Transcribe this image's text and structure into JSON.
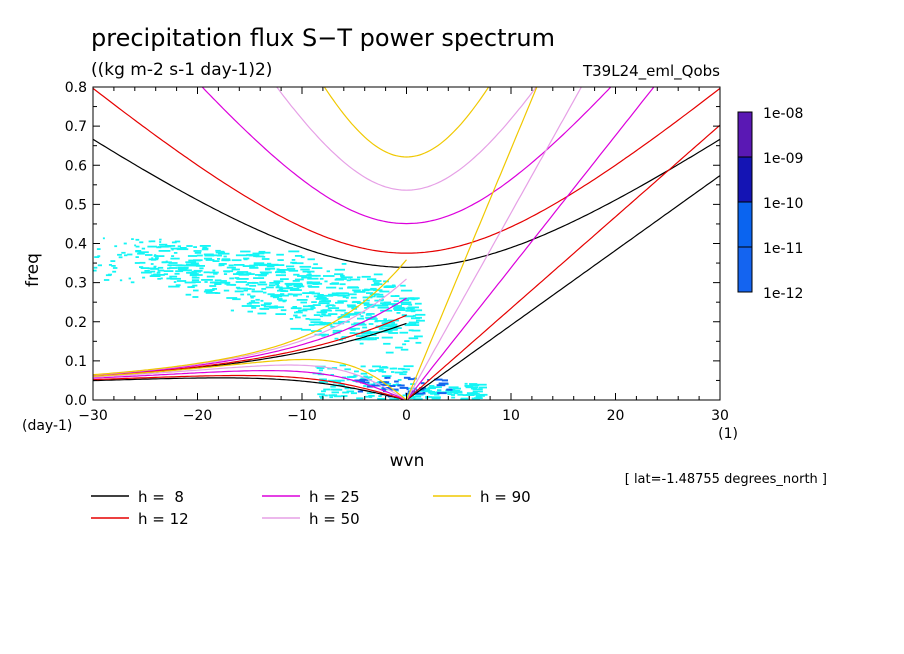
{
  "chart_data": {
    "type": "line",
    "title": "precipitation flux S−T power spectrum",
    "subtitle": "((kg m-2 s-1 day-1)2)",
    "run_label": "T39L24_eml_Qobs",
    "xlabel": "wvn",
    "ylabel": "freq",
    "x_unit": "(1)",
    "y_unit": "(day-1)",
    "xlim": [
      -30,
      30
    ],
    "ylim": [
      0,
      0.8
    ],
    "x_ticks": [
      "−30",
      "−20",
      "−10",
      "0",
      "10",
      "20",
      "30"
    ],
    "y_ticks": [
      "0.0",
      "0.1",
      "0.2",
      "0.3",
      "0.4",
      "0.5",
      "0.6",
      "0.7",
      "0.8"
    ],
    "footnote": "[ lat=-1.48755 degrees_north ]",
    "colorbar": {
      "labels": [
        "1e-08",
        "1e-09",
        "1e-10",
        "1e-11",
        "1e-12"
      ],
      "colors": [
        "#5a18b4",
        "#1414b4",
        "#0a64f0",
        "#1464f0",
        "#14f5f5"
      ]
    },
    "series": [
      {
        "name": "h =  8",
        "color": "#000000",
        "equivalent_depth_m": 8
      },
      {
        "name": "h = 12",
        "color": "#e60000",
        "equivalent_depth_m": 12
      },
      {
        "name": "h = 25",
        "color": "#dc00dc",
        "equivalent_depth_m": 25
      },
      {
        "name": "h = 50",
        "color": "#e6a0e6",
        "equivalent_depth_m": 50
      },
      {
        "name": "h = 90",
        "color": "#f0c800",
        "equivalent_depth_m": 90
      }
    ],
    "field_color": "#14f5f5",
    "field_core_color": "#1464f0"
  }
}
